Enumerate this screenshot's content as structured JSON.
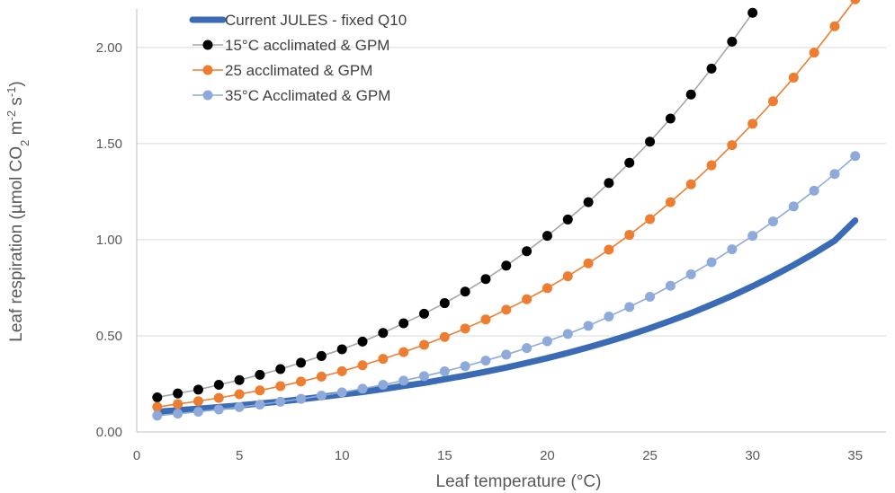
{
  "chart_data": {
    "type": "line",
    "title": "",
    "xlabel": "Leaf temperature (°C)",
    "ylabel_parts": [
      "Leaf respiration (µmol CO",
      "2",
      " m",
      "-2",
      " s",
      "-1",
      ")"
    ],
    "xlim": [
      0,
      36.5
    ],
    "ylim": [
      0,
      2.2
    ],
    "xticks": [
      0,
      5,
      10,
      15,
      20,
      25,
      30,
      35
    ],
    "yticks": [
      0,
      0.5,
      1.0,
      1.5,
      2.0
    ],
    "ytick_labels": [
      "0.00",
      "0.50",
      "1.00",
      "1.50",
      "2.00"
    ],
    "grid": "horizontal",
    "legend_position": "top-left",
    "series": [
      {
        "name": "Current JULES - fixed Q10",
        "style": "thick-line",
        "color": "#3b6bb5",
        "x": [
          1,
          2,
          3,
          4,
          5,
          6,
          7,
          8,
          9,
          10,
          11,
          12,
          13,
          14,
          15,
          16,
          17,
          18,
          19,
          20,
          21,
          22,
          23,
          24,
          25,
          26,
          27,
          28,
          29,
          30,
          31,
          32,
          33,
          34,
          35
        ],
        "values": [
          0.105,
          0.113,
          0.121,
          0.129,
          0.138,
          0.148,
          0.158,
          0.17,
          0.182,
          0.195,
          0.208,
          0.223,
          0.239,
          0.255,
          0.274,
          0.293,
          0.313,
          0.335,
          0.359,
          0.384,
          0.411,
          0.44,
          0.471,
          0.504,
          0.54,
          0.578,
          0.618,
          0.662,
          0.708,
          0.758,
          0.811,
          0.868,
          0.929,
          0.995,
          1.1
        ]
      },
      {
        "name": "15°C acclimated & GPM",
        "style": "marker-line",
        "color": "#000000",
        "line_color": "#a6a6a6",
        "x": [
          1,
          2,
          3,
          4,
          5,
          6,
          7,
          8,
          9,
          10,
          11,
          12,
          13,
          14,
          15,
          16,
          17,
          18,
          19,
          20,
          21,
          22,
          23,
          24,
          25,
          26,
          27,
          28,
          29,
          30
        ],
        "values": [
          0.18,
          0.2,
          0.22,
          0.245,
          0.27,
          0.297,
          0.327,
          0.36,
          0.395,
          0.43,
          0.47,
          0.515,
          0.565,
          0.615,
          0.67,
          0.73,
          0.795,
          0.865,
          0.94,
          1.02,
          1.105,
          1.195,
          1.295,
          1.4,
          1.51,
          1.63,
          1.755,
          1.89,
          2.03,
          2.18
        ]
      },
      {
        "name": "25 acclimated & GPM",
        "style": "marker-line",
        "color": "#ed7d31",
        "line_color": "#ed7d31",
        "x": [
          1,
          2,
          3,
          4,
          5,
          6,
          7,
          8,
          9,
          10,
          11,
          12,
          13,
          14,
          15,
          16,
          17,
          18,
          19,
          20,
          21,
          22,
          23,
          24,
          25,
          26,
          27,
          28,
          29,
          30,
          31,
          32,
          33,
          34,
          35
        ],
        "values": [
          0.13,
          0.145,
          0.16,
          0.177,
          0.196,
          0.216,
          0.238,
          0.262,
          0.288,
          0.316,
          0.347,
          0.38,
          0.415,
          0.453,
          0.494,
          0.538,
          0.585,
          0.636,
          0.69,
          0.748,
          0.81,
          0.877,
          0.948,
          1.025,
          1.107,
          1.195,
          1.288,
          1.387,
          1.492,
          1.603,
          1.72,
          1.843,
          1.973,
          2.11,
          2.25
        ]
      },
      {
        "name": "35°C Acclimated & GPM",
        "style": "marker-line",
        "color": "#8eaadb",
        "line_color": "#8eaadb",
        "x": [
          1,
          2,
          3,
          4,
          5,
          6,
          7,
          8,
          9,
          10,
          11,
          12,
          13,
          14,
          15,
          16,
          17,
          18,
          19,
          20,
          21,
          22,
          23,
          24,
          25,
          26,
          27,
          28,
          29,
          30,
          31,
          32,
          33,
          34,
          35
        ],
        "values": [
          0.085,
          0.095,
          0.105,
          0.117,
          0.129,
          0.142,
          0.157,
          0.172,
          0.189,
          0.206,
          0.225,
          0.245,
          0.267,
          0.29,
          0.315,
          0.342,
          0.371,
          0.402,
          0.436,
          0.472,
          0.51,
          0.552,
          0.6,
          0.65,
          0.703,
          0.76,
          0.82,
          0.883,
          0.95,
          1.02,
          1.095,
          1.173,
          1.255,
          1.342,
          1.435
        ]
      }
    ]
  }
}
